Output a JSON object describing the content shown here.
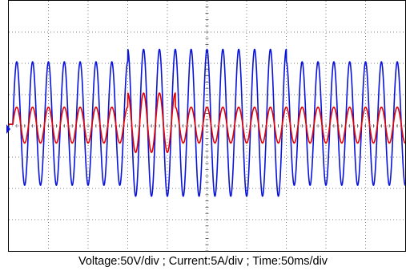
{
  "chart_data": {
    "type": "line",
    "caption": "Voltage:50V/div ; Current:5A/div ; Time:50ms/div",
    "screen": {
      "divisions_x": 10,
      "divisions_y": 8,
      "minor_ticks_per_div": 5,
      "grid": "dotted"
    },
    "time_per_div_ms": 50,
    "time_range_ms": [
      0,
      500
    ],
    "series": [
      {
        "id": "voltage",
        "color": "#0a14d8",
        "units_per_div": 50,
        "unit": "V",
        "frequency_hz": 50,
        "offset_div": 0.05,
        "segments": [
          {
            "t_ms": [
              0,
              5
            ],
            "peak_pos_div": 0,
            "peak_neg_div": 0
          },
          {
            "t_ms": [
              5,
              150
            ],
            "peak_pos_div": 2.0,
            "peak_neg_div": 1.95
          },
          {
            "t_ms": [
              150,
              350
            ],
            "peak_pos_div": 2.4,
            "peak_neg_div": 2.3
          },
          {
            "t_ms": [
              350,
              500
            ],
            "peak_pos_div": 2.0,
            "peak_neg_div": 1.95
          }
        ]
      },
      {
        "id": "current",
        "color": "#e60000",
        "units_per_div": 5,
        "unit": "A",
        "frequency_hz": 50,
        "offset_div": 0.05,
        "segments": [
          {
            "t_ms": [
              0,
              5
            ],
            "peak_pos_div": 0,
            "peak_neg_div": 0
          },
          {
            "t_ms": [
              5,
              150
            ],
            "peak_pos_div": 0.55,
            "peak_neg_div": 0.6
          },
          {
            "t_ms": [
              150,
              210
            ],
            "peak_pos_div": 1.0,
            "peak_neg_div": 0.9
          },
          {
            "t_ms": [
              210,
              500
            ],
            "peak_pos_div": 0.55,
            "peak_neg_div": 0.6
          }
        ]
      }
    ]
  }
}
